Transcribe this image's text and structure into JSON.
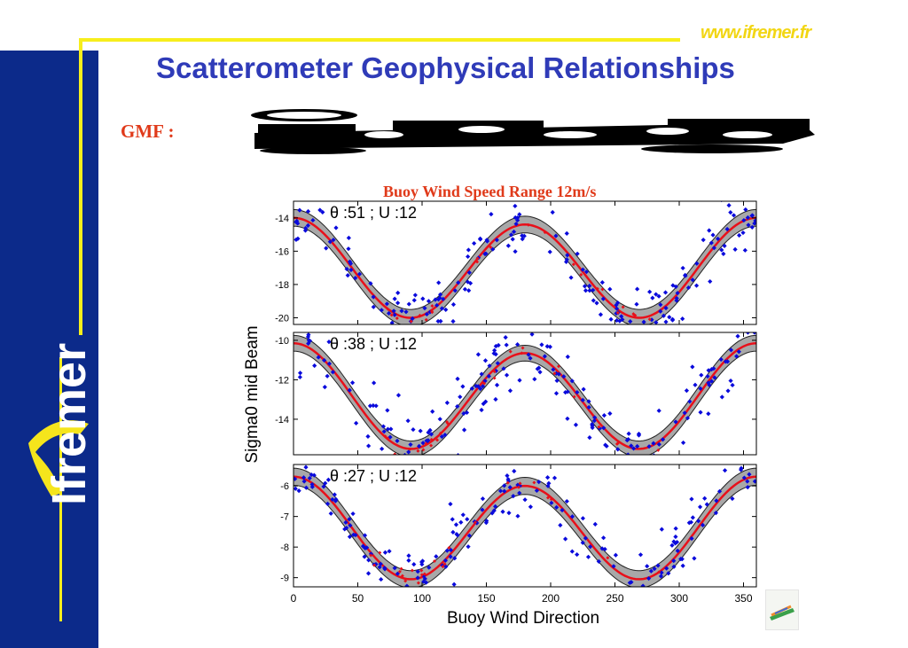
{
  "header": {
    "title": "Scatterometer Geophysical Relationships",
    "url": "www.ifremer.fr"
  },
  "brand": {
    "logo_text": "Ifremer"
  },
  "gmf_label": "GMF :",
  "colors": {
    "sidebar": "#0c2a8a",
    "accent_yellow": "#f7ee1c",
    "title_blue": "#2f3bb8",
    "red_text": "#e03a1a",
    "scatter": "#0a0adc",
    "model": "#e8101a",
    "band": "#a8a8a8"
  },
  "chart_data": {
    "type": "scatter",
    "title": "Buoy Wind Speed Range 12m/s",
    "xlabel": "Buoy Wind Direction",
    "ylabel": "Sigma0 mid Beam",
    "xlim": [
      0,
      360
    ],
    "xticks": [
      0,
      50,
      100,
      150,
      200,
      250,
      300,
      350
    ],
    "panels": [
      {
        "label": "θ :51 ; U :12",
        "ylim": [
          -20.4,
          -13
        ],
        "yticks": [
          -14,
          -16,
          -18,
          -20
        ],
        "model": {
          "mean": -17.1,
          "a1": 0.2,
          "a2": 2.9,
          "band": 0.5
        },
        "scatter_sigma": 0.8
      },
      {
        "label": "θ :38 ; U :12",
        "ylim": [
          -15.8,
          -9.6
        ],
        "yticks": [
          -10,
          -12,
          -14
        ],
        "model": {
          "mean": -12.95,
          "a1": 0.25,
          "a2": 2.55,
          "band": 0.4
        },
        "scatter_sigma": 0.8
      },
      {
        "label": "θ :27 ; U :12",
        "ylim": [
          -9.3,
          -5.3
        ],
        "yticks": [
          -6,
          -7,
          -8,
          -9
        ],
        "model": {
          "mean": -7.45,
          "a1": 0.15,
          "a2": 1.6,
          "band": 0.28
        },
        "scatter_sigma": 0.5
      }
    ]
  }
}
